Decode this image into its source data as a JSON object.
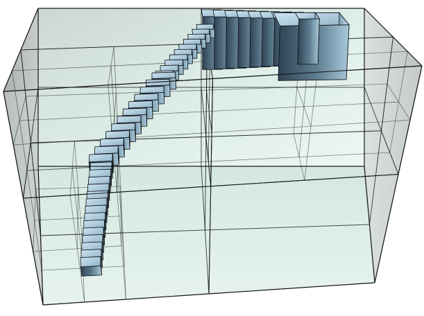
{
  "scene": {
    "kind": "3d-octree-partition",
    "outer_box_fill": "#c9ccca",
    "cell_tint": "#bfe0d2",
    "edge_color": "#111111",
    "block_fill_dark": "#3e5566",
    "block_fill_light": "#b9d6e6",
    "block_edge_color": "#0a0d10"
  }
}
